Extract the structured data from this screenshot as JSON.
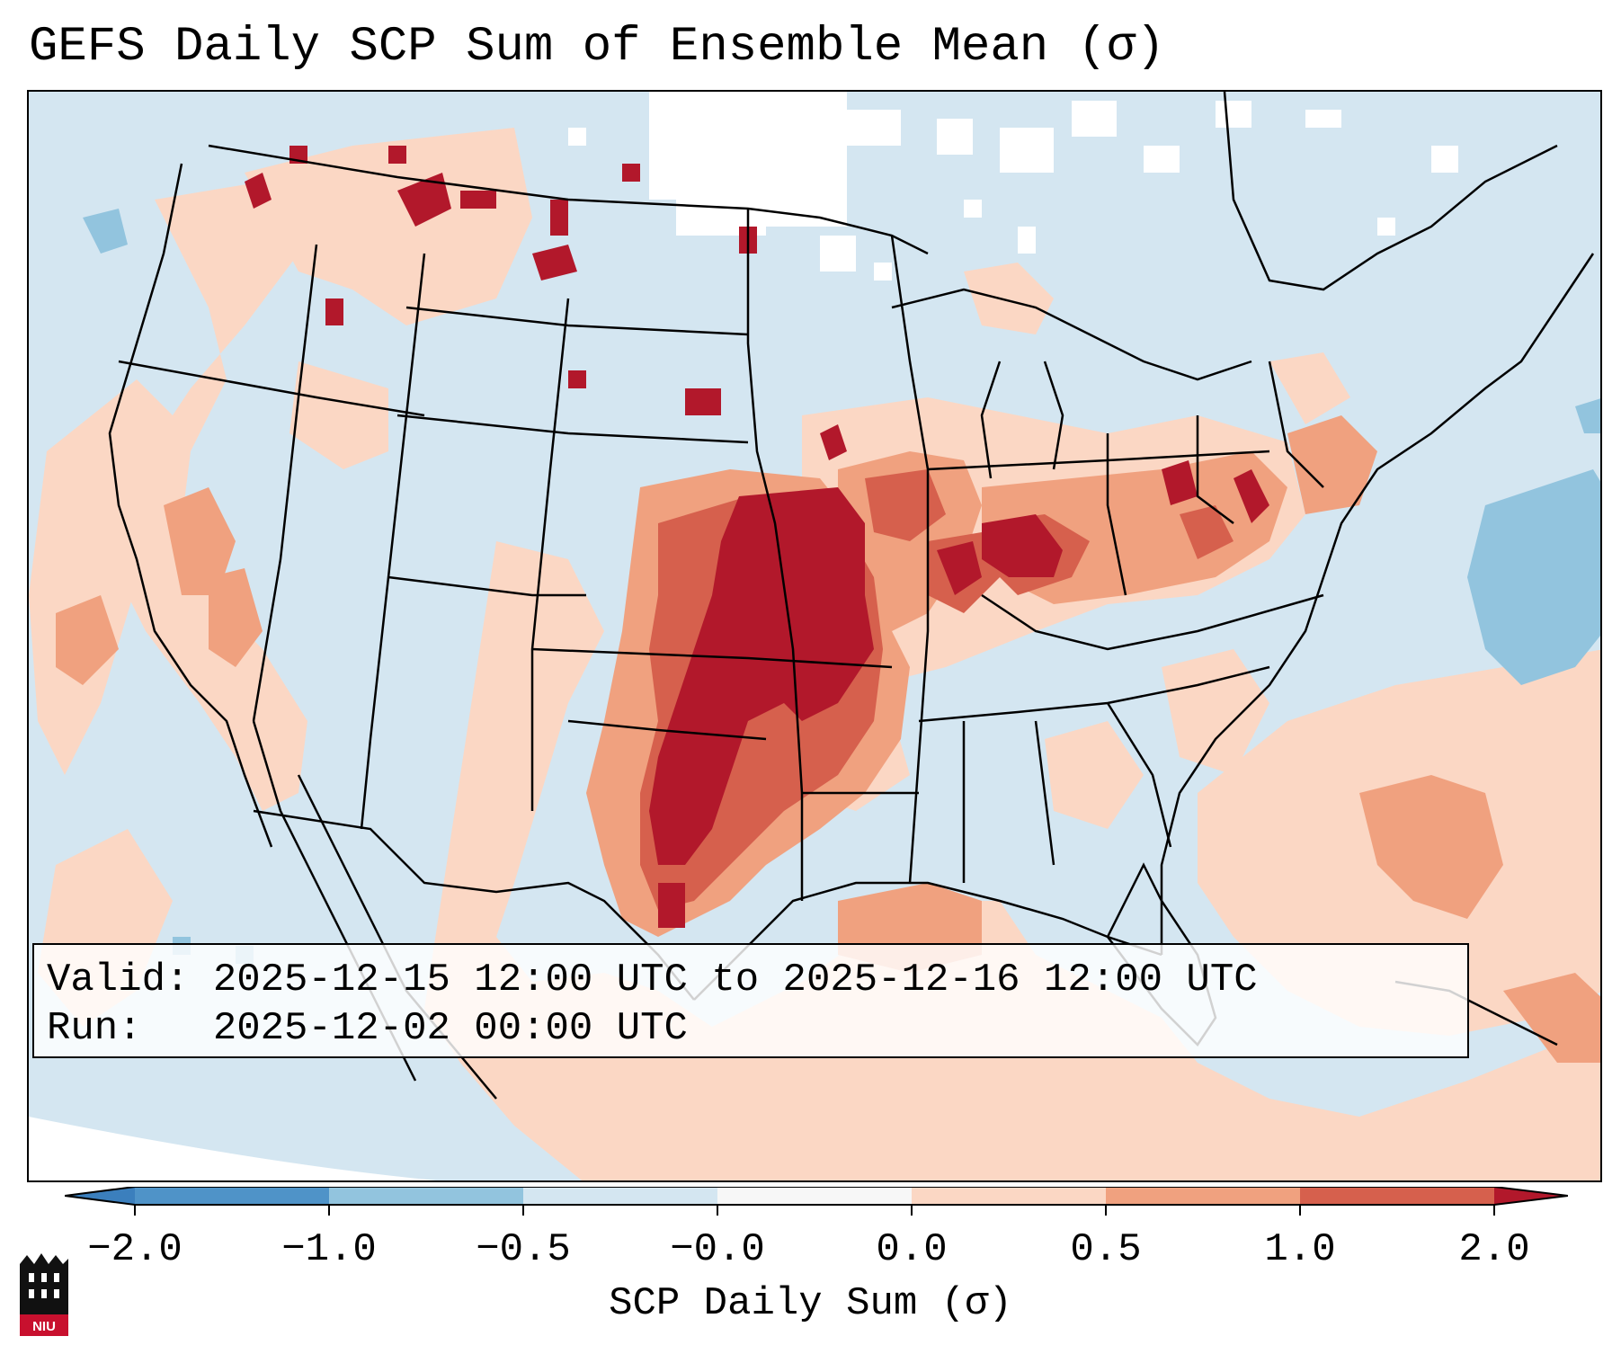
{
  "title": "GEFS Daily SCP Sum of Ensemble Mean (σ)",
  "info_box": {
    "valid_label": "Valid:",
    "valid_value": "2025-12-15 12:00 UTC to 2025-12-16 12:00 UTC",
    "run_label": "Run:",
    "run_value": "2025-12-02 00:00 UTC"
  },
  "colorbar": {
    "label": "SCP Daily Sum (σ)",
    "ticks": [
      "−2.0",
      "−1.0",
      "−0.5",
      "−0.0",
      "0.0",
      "0.5",
      "1.0",
      "2.0"
    ],
    "colors": {
      "below_-2": "#3b7fbd",
      "-2_to_-1": "#4f93c8",
      "-1_to_-0.5": "#92c4de",
      "-0.5_to_0": "#d4e6f1",
      "zero": "#f7f7f7",
      "0_to_0.5": "#fbd7c4",
      "0.5_to_1": "#f0a17f",
      "1_to_2": "#d6604d",
      "above_2": "#b2182b"
    }
  },
  "map": {
    "background_color": "#d4e6f1",
    "region": "Continental United States, northern Mexico, southern Canada"
  },
  "logo": {
    "text": "NIU"
  }
}
